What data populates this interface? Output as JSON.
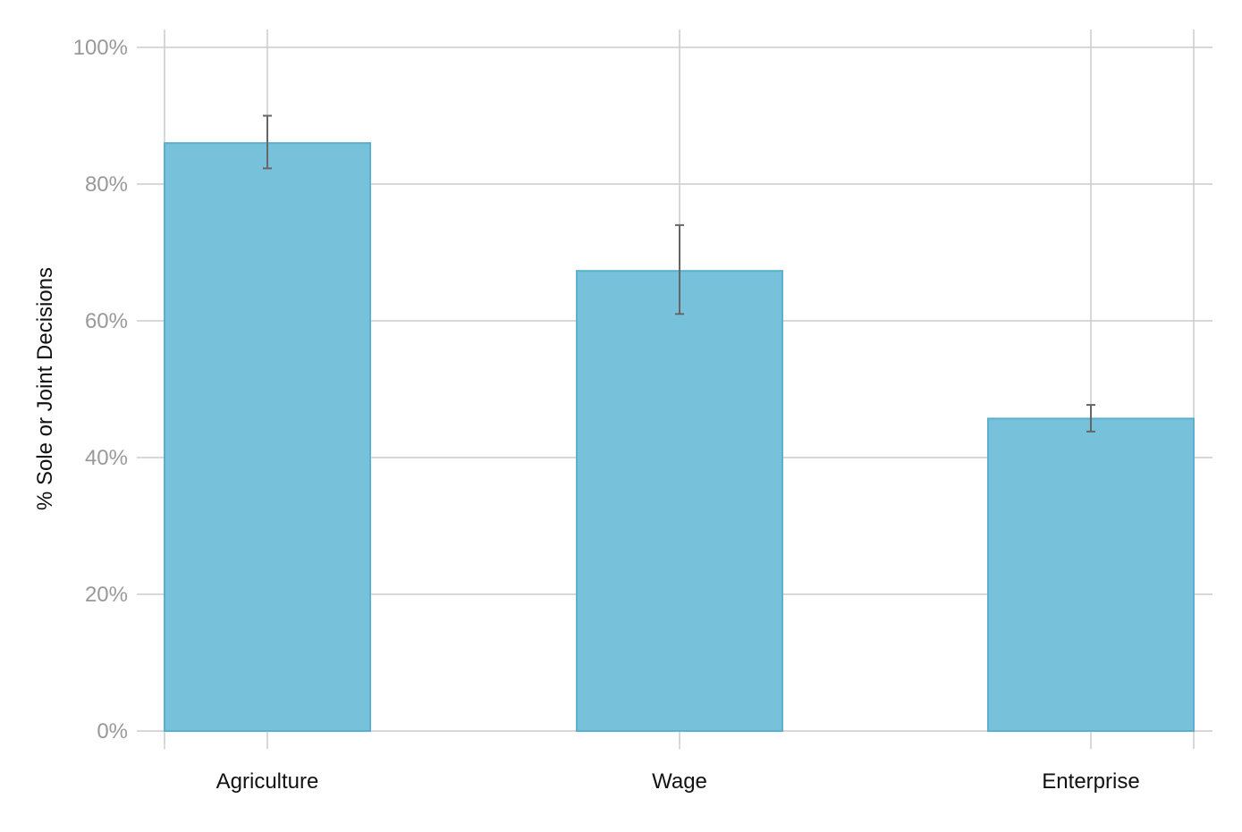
{
  "chart_data": {
    "type": "bar",
    "categories": [
      "Agriculture",
      "Wage",
      "Enterprise"
    ],
    "values": [
      86,
      67.3,
      45.7
    ],
    "error_bars": [
      {
        "low": 82.3,
        "high": 90
      },
      {
        "low": 61,
        "high": 74
      },
      {
        "low": 43.8,
        "high": 47.7
      }
    ],
    "ylabel": "% Sole or Joint Decisions",
    "xlabel": "",
    "ylim": [
      0,
      100
    ],
    "yticks": [
      0,
      20,
      40,
      60,
      80,
      100
    ],
    "ytick_labels": [
      "0%",
      "20%",
      "40%",
      "60%",
      "80%",
      "100%"
    ],
    "grid": true,
    "colors": {
      "bar_fill": "#78c1da",
      "bar_stroke": "#5ab0cf",
      "error_bar": "#666666",
      "grid": "#cccccc"
    }
  }
}
